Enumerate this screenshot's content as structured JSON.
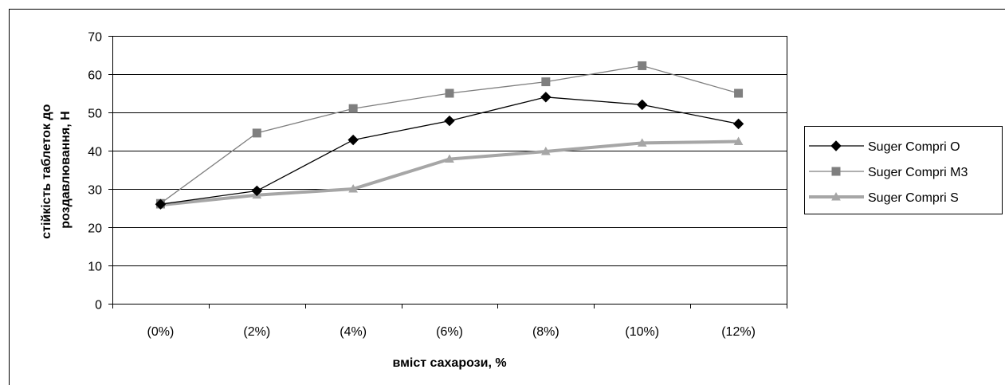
{
  "chart_data": {
    "type": "line",
    "title": "",
    "xlabel": "вміст сахарози, %",
    "ylabel_lines": [
      "стійкість таблеток до",
      "роздавлювання, Н"
    ],
    "categories": [
      "(0%)",
      "(2%)",
      "(4%)",
      "(6%)",
      "(8%)",
      "(10%)",
      "(12%)"
    ],
    "ylim": [
      0,
      70
    ],
    "yticks": [
      0,
      10,
      20,
      30,
      40,
      50,
      60,
      70
    ],
    "grid": "horizontal",
    "legend_position": "right",
    "series": [
      {
        "name": "Suger Compri O",
        "values": [
          26,
          29.5,
          42.8,
          47.8,
          54,
          52,
          47
        ],
        "color": "#000000",
        "marker": "diamond"
      },
      {
        "name": "Suger Compri M3",
        "values": [
          26.2,
          44.6,
          51,
          55,
          58,
          62.2,
          55
        ],
        "color": "#7f7f7f",
        "marker": "square"
      },
      {
        "name": "Suger Compri S",
        "values": [
          25.8,
          28.4,
          30,
          37.8,
          39.8,
          42,
          42.4
        ],
        "color": "#a6a6a6",
        "marker": "triangle"
      }
    ]
  }
}
